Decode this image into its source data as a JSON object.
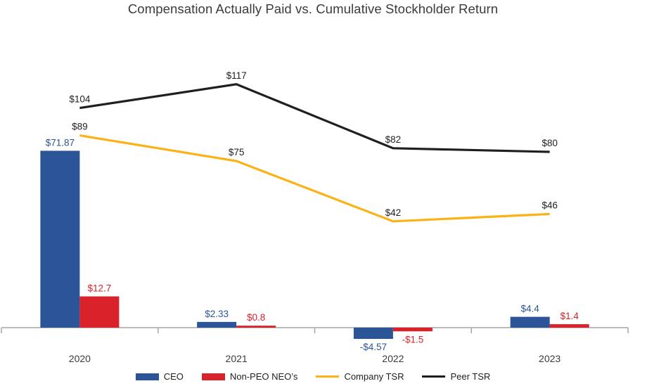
{
  "chart_data": {
    "type": "combo",
    "title": "Compensation Actually Paid vs. Cumulative Stockholder Return",
    "categories": [
      "2020",
      "2021",
      "2022",
      "2023"
    ],
    "series": [
      {
        "name": "CEO",
        "type": "bar",
        "color_key": "ceo_blue",
        "values": [
          71.87,
          2.33,
          -4.57,
          4.4
        ],
        "labels": [
          "$71.87",
          "$2.33",
          "-$4.57",
          "$4.4"
        ]
      },
      {
        "name": "Non-PEO NEO’s",
        "type": "bar",
        "color_key": "neo_red",
        "values": [
          12.7,
          0.8,
          -1.5,
          1.4
        ],
        "labels": [
          "$12.7",
          "$0.8",
          "-$1.5",
          "$1.4"
        ]
      },
      {
        "name": "Company TSR",
        "type": "line",
        "color_key": "company_tsr_yellow",
        "values": [
          89,
          75,
          42,
          46
        ],
        "labels": [
          "$89",
          "$75",
          "$42",
          "$46"
        ]
      },
      {
        "name": "Peer TSR",
        "type": "line",
        "color_key": "peer_tsr_black",
        "values": [
          104,
          117,
          82,
          80
        ],
        "labels": [
          "$104",
          "$117",
          "$82",
          "$80"
        ]
      }
    ],
    "legend": [
      "CEO",
      "Non-PEO NEO’s",
      "Company TSR",
      "Peer TSR"
    ],
    "legend_position": "bottom",
    "grid": false,
    "y_axis_visible": false,
    "data_labels_shown": true
  },
  "colors": {
    "ceo_blue": "#2B5597",
    "neo_red": "#D92229",
    "company_tsr_yellow": "#FBB216",
    "peer_tsr_black": "#1F1F1F",
    "axis_gray": "#A6A6A6",
    "text_dark": "#3B3B3B",
    "label_black": "#1F1F1F"
  }
}
